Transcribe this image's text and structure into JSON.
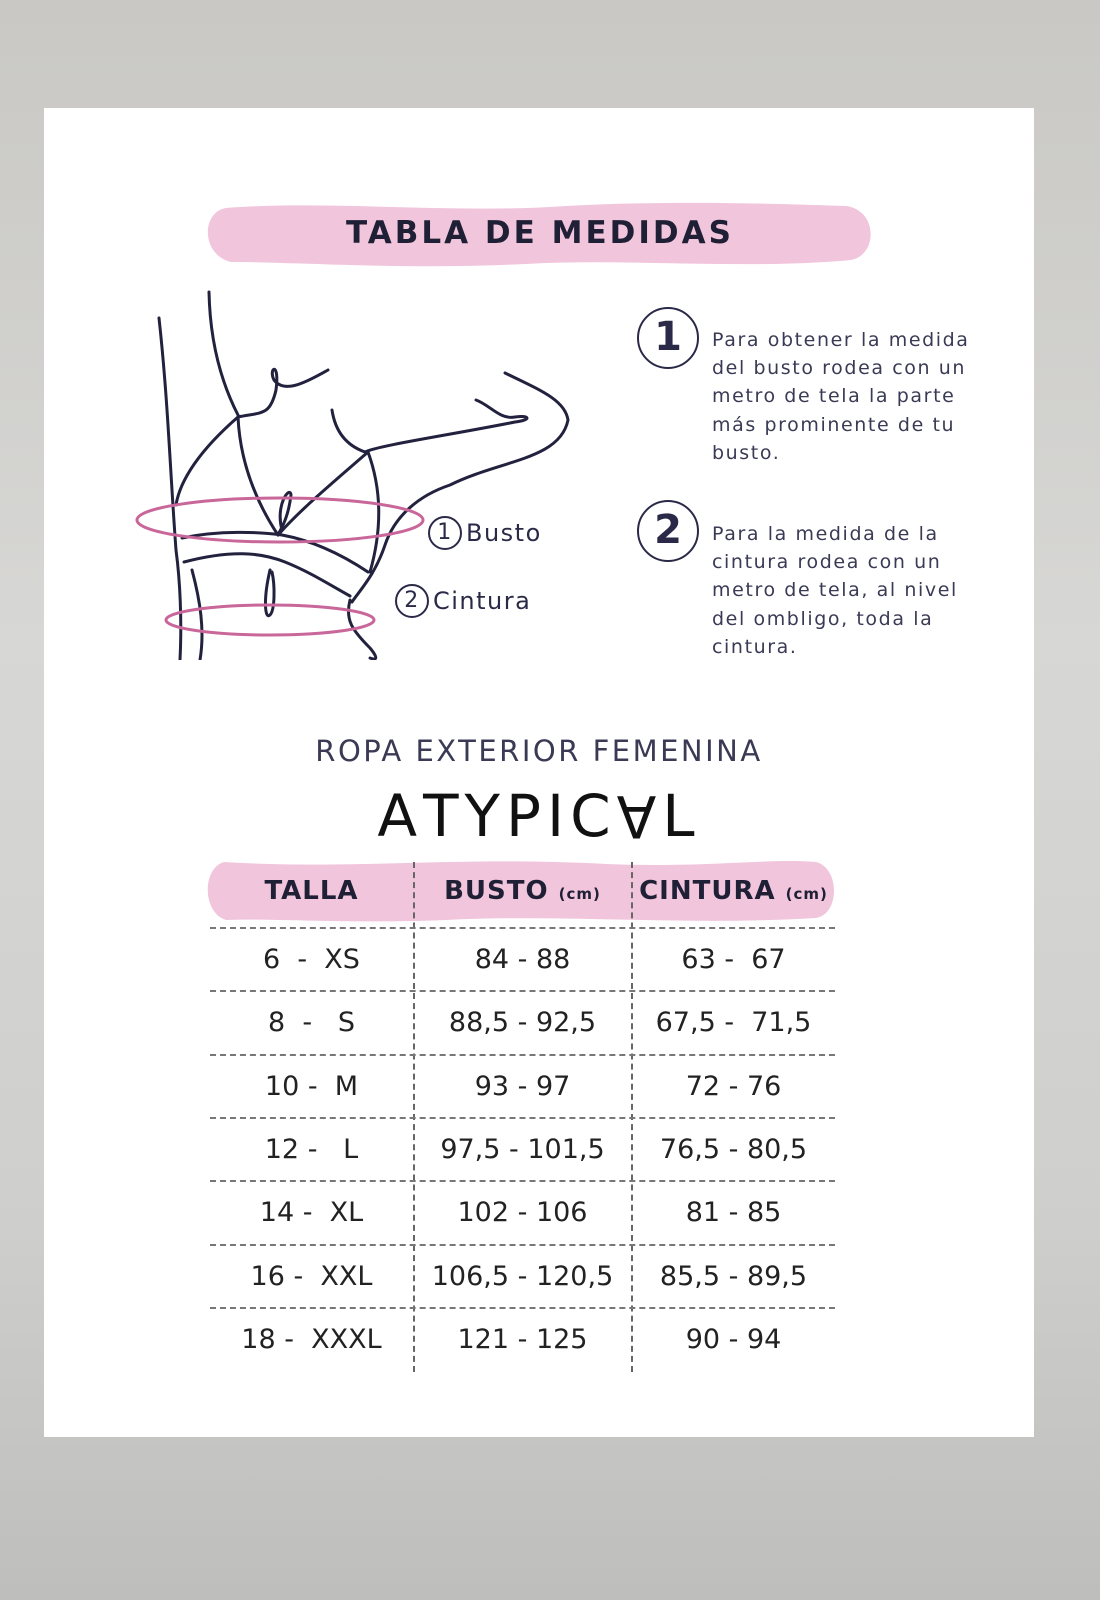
{
  "header": {
    "title": "TABLA DE MEDIDAS"
  },
  "illustration": {
    "labels": [
      {
        "num": "1",
        "text": "Busto"
      },
      {
        "num": "2",
        "text": "Cintura"
      }
    ]
  },
  "steps": [
    {
      "num": "1",
      "text": "Para obtener la medida del busto rodea con un metro de tela la parte más prominente de tu busto."
    },
    {
      "num": "2",
      "text": "Para la medida de la cintura rodea con un metro de tela, al nivel del ombligo, toda la cintura."
    }
  ],
  "subtitle": "ROPA EXTERIOR FEMENINA",
  "brand": "ATYPICAL",
  "table": {
    "columns": [
      {
        "label": "TALLA",
        "unit": ""
      },
      {
        "label": "BUSTO",
        "unit": "(cm)"
      },
      {
        "label": "CINTURA",
        "unit": "(cm)"
      }
    ],
    "rows": [
      [
        "6  -  XS",
        "84 - 88",
        "63 -  67"
      ],
      [
        "8  -   S",
        "88,5 - 92,5",
        "67,5 -  71,5"
      ],
      [
        "10 -  M",
        "93 - 97",
        "72 - 76"
      ],
      [
        "12 -   L",
        "97,5 - 101,5",
        "76,5 - 80,5"
      ],
      [
        "14 -  XL",
        "102 - 106",
        "81 - 85"
      ],
      [
        "16 -  XXL",
        "106,5 - 120,5",
        "85,5 - 89,5"
      ],
      [
        "18 -  XXXL",
        "121 - 125",
        "90 - 94"
      ]
    ]
  },
  "colors": {
    "accent_pink": "#f1c6dc",
    "ring_pink": "#c9679a",
    "ink": "#2a2a48"
  }
}
